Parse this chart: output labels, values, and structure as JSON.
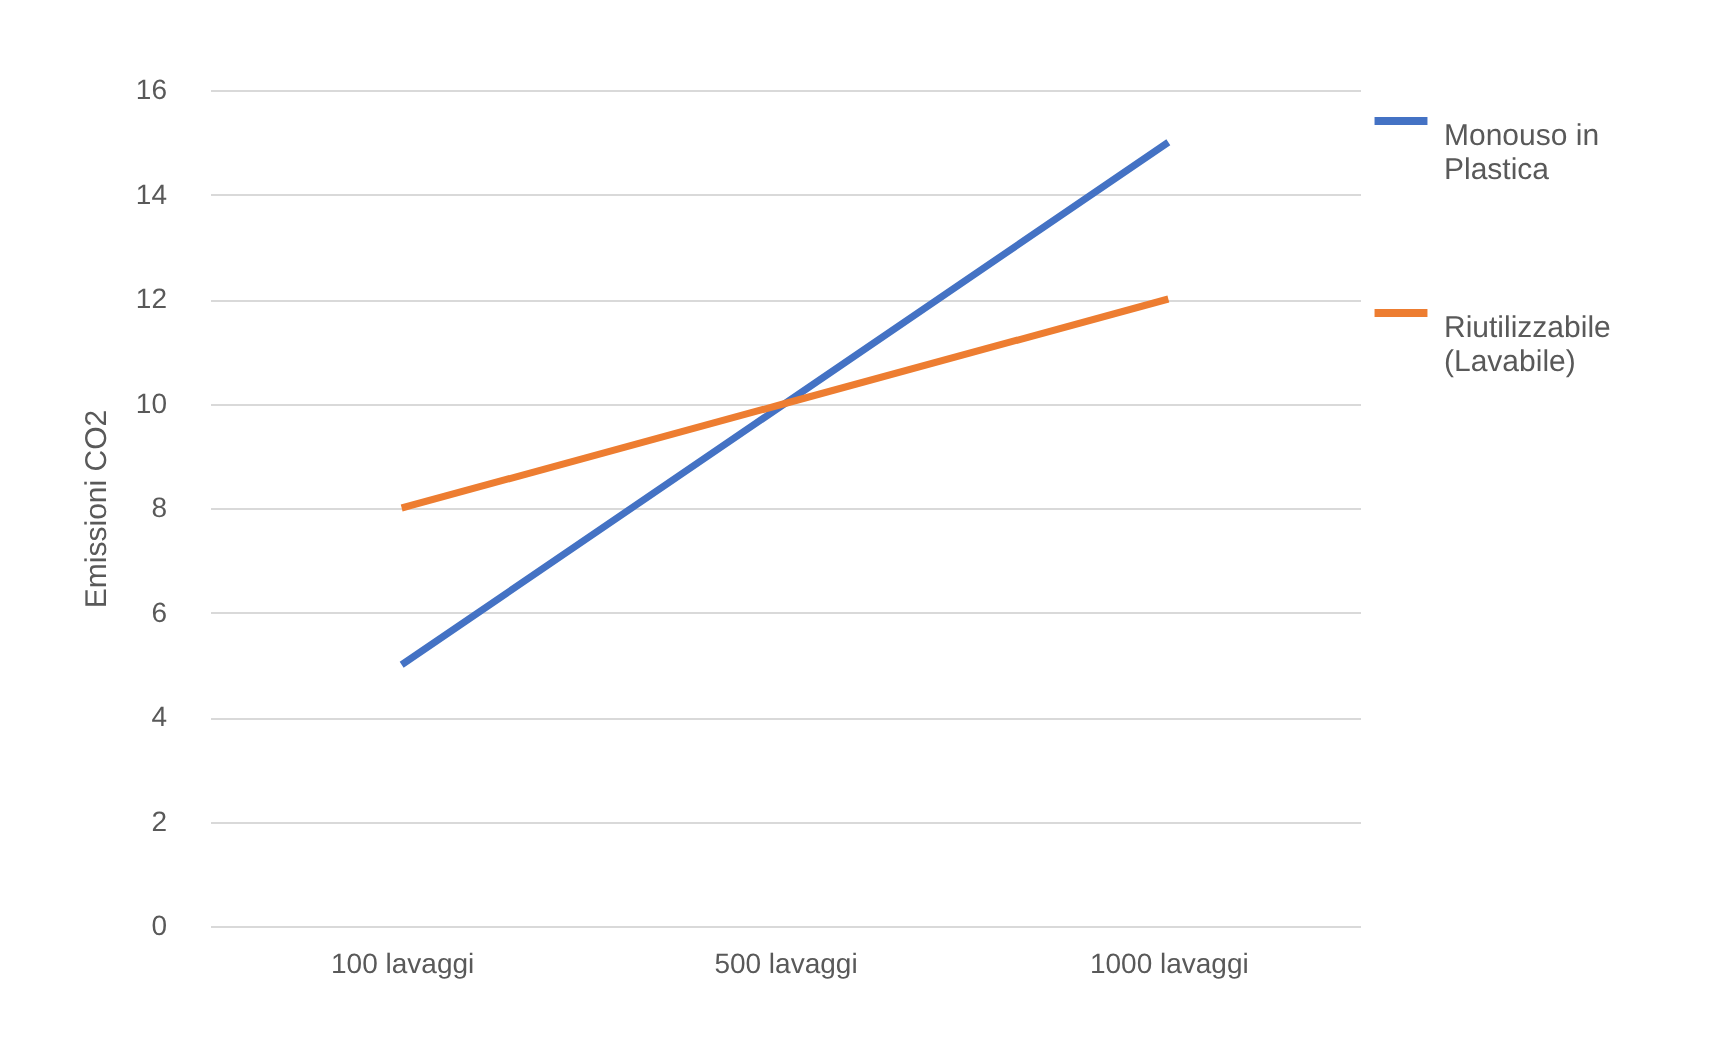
{
  "chart_data": {
    "type": "line",
    "ylabel": "Emissioni CO2",
    "categories": [
      "100 lavaggi",
      "500 lavaggi",
      "1000 lavaggi"
    ],
    "series": [
      {
        "name": "Monouso in Plastica",
        "color": "#4472c4",
        "values": [
          5,
          10,
          15
        ]
      },
      {
        "name": "Riutilizzabile (Lavabile)",
        "color": "#ed7d31",
        "values": [
          8,
          10,
          12
        ]
      }
    ],
    "ylim": [
      0,
      16
    ],
    "yticks": [
      0,
      2,
      4,
      6,
      8,
      10,
      12,
      14,
      16
    ],
    "grid": "y",
    "legend": "right",
    "marker": "none"
  }
}
